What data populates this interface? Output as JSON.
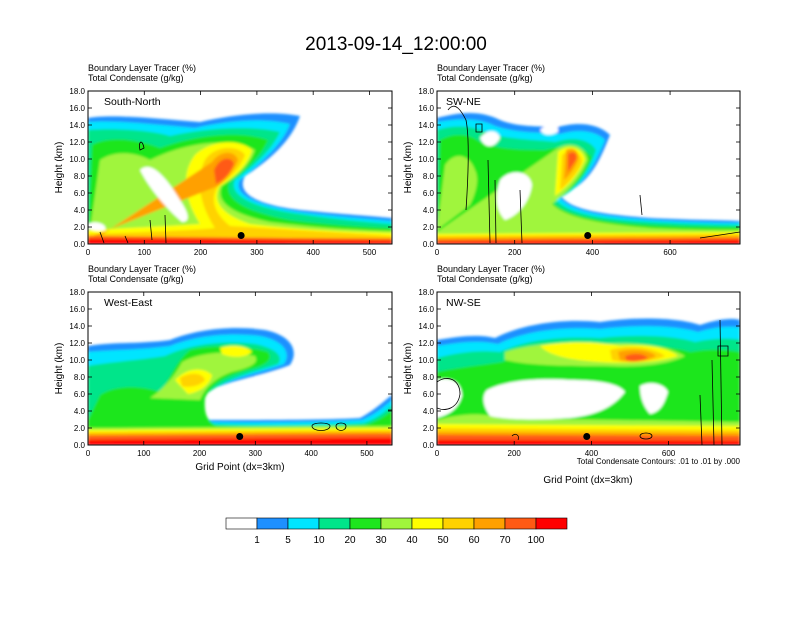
{
  "figure": {
    "title": "2013-09-14_12:00:00",
    "panel_header_line1": "Boundary Layer Tracer   (%)",
    "panel_header_line2": "Total Condensate   (g/kg)",
    "contour_note": "Total Condensate Contours: .01 to .01 by .000"
  },
  "colorbar": {
    "labels": [
      "1",
      "5",
      "10",
      "20",
      "30",
      "40",
      "50",
      "60",
      "70",
      "100"
    ],
    "colors": [
      "#ffffff",
      "#1e90ff",
      "#00e5ff",
      "#00e58a",
      "#1ee61e",
      "#a0f53c",
      "#ffff00",
      "#ffd200",
      "#ffa000",
      "#ff5a14",
      "#ff0000"
    ]
  },
  "chart_data": [
    {
      "type": "heatmap",
      "name": "South-North",
      "title": "South-North",
      "ylabel": "Height (km)",
      "xlabel": "",
      "xlim": [
        0,
        540
      ],
      "ylim": [
        0,
        18
      ],
      "xticks": [
        "0",
        "100",
        "200",
        "300",
        "400",
        "500"
      ],
      "yticks": [
        "0.0",
        "2.0",
        "4.0",
        "6.0",
        "8.0",
        "10.0",
        "12.0",
        "14.0",
        "16.0",
        "18.0"
      ],
      "location_marker": {
        "x": 272,
        "y": 1.0
      }
    },
    {
      "type": "heatmap",
      "name": "SW-NE",
      "title": "SW-NE",
      "ylabel": "Height (km)",
      "xlabel": "",
      "xlim": [
        0,
        780
      ],
      "ylim": [
        0,
        18
      ],
      "xticks": [
        "0",
        "200",
        "400",
        "600"
      ],
      "yticks": [
        "0.0",
        "2.0",
        "4.0",
        "6.0",
        "8.0",
        "10.0",
        "12.0",
        "14.0",
        "16.0",
        "18.0"
      ],
      "location_marker": {
        "x": 388,
        "y": 1.0
      }
    },
    {
      "type": "heatmap",
      "name": "West-East",
      "title": "West-East",
      "ylabel": "Height (km)",
      "xlabel": "Grid Point (dx=3km)",
      "xlim": [
        0,
        545
      ],
      "ylim": [
        0,
        18
      ],
      "xticks": [
        "0",
        "100",
        "200",
        "300",
        "400",
        "500"
      ],
      "yticks": [
        "0.0",
        "2.0",
        "4.0",
        "6.0",
        "8.0",
        "10.0",
        "12.0",
        "14.0",
        "16.0",
        "18.0"
      ],
      "location_marker": {
        "x": 272,
        "y": 1.0
      }
    },
    {
      "type": "heatmap",
      "name": "NW-SE",
      "title": "NW-SE",
      "ylabel": "Height (km)",
      "xlabel": "Grid Point (dx=3km)",
      "xlim": [
        0,
        785
      ],
      "ylim": [
        0,
        18
      ],
      "xticks": [
        "0",
        "200",
        "400",
        "600"
      ],
      "yticks": [
        "0.0",
        "2.0",
        "4.0",
        "6.0",
        "8.0",
        "10.0",
        "12.0",
        "14.0",
        "16.0",
        "18.0"
      ],
      "location_marker": {
        "x": 388,
        "y": 1.0
      }
    }
  ]
}
